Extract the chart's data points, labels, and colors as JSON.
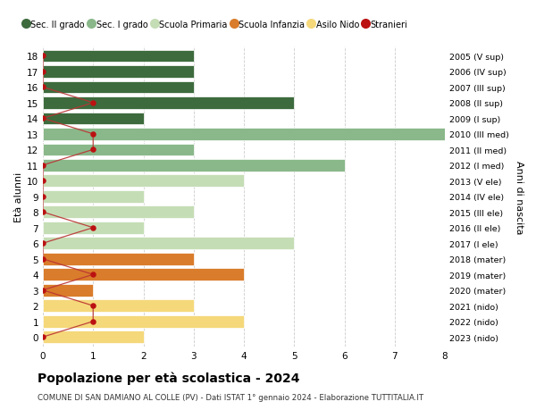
{
  "ages": [
    18,
    17,
    16,
    15,
    14,
    13,
    12,
    11,
    10,
    9,
    8,
    7,
    6,
    5,
    4,
    3,
    2,
    1,
    0
  ],
  "years": [
    "2005 (V sup)",
    "2006 (IV sup)",
    "2007 (III sup)",
    "2008 (II sup)",
    "2009 (I sup)",
    "2010 (III med)",
    "2011 (II med)",
    "2012 (I med)",
    "2013 (V ele)",
    "2014 (IV ele)",
    "2015 (III ele)",
    "2016 (II ele)",
    "2017 (I ele)",
    "2018 (mater)",
    "2019 (mater)",
    "2020 (mater)",
    "2021 (nido)",
    "2022 (nido)",
    "2023 (nido)"
  ],
  "bar_values": [
    3,
    3,
    3,
    5,
    2,
    8,
    3,
    6,
    4,
    2,
    3,
    2,
    5,
    3,
    4,
    1,
    3,
    4,
    2
  ],
  "bar_colors": [
    "#3d6b3d",
    "#3d6b3d",
    "#3d6b3d",
    "#3d6b3d",
    "#3d6b3d",
    "#8ab88a",
    "#8ab88a",
    "#8ab88a",
    "#c5ddb5",
    "#c5ddb5",
    "#c5ddb5",
    "#c5ddb5",
    "#c5ddb5",
    "#d97c2b",
    "#d97c2b",
    "#d97c2b",
    "#f5d87a",
    "#f5d87a",
    "#f5d87a"
  ],
  "stranieri_x": [
    0,
    0,
    0,
    1,
    0,
    1,
    1,
    0,
    0,
    0,
    0,
    1,
    0,
    0,
    1,
    0,
    1,
    1,
    0
  ],
  "legend_labels": [
    "Sec. II grado",
    "Sec. I grado",
    "Scuola Primaria",
    "Scuola Infanzia",
    "Asilo Nido",
    "Stranieri"
  ],
  "legend_colors": [
    "#3d6b3d",
    "#8ab88a",
    "#c5ddb5",
    "#d97c2b",
    "#f5d87a",
    "#bb1111"
  ],
  "title": "Popolazione per età scolastica - 2024",
  "subtitle": "COMUNE DI SAN DAMIANO AL COLLE (PV) - Dati ISTAT 1° gennaio 2024 - Elaborazione TUTTITALIA.IT",
  "ylabel_left": "Età alunni",
  "ylabel_right": "Anni di nascita",
  "xlim_max": 8,
  "bar_height": 0.78,
  "bg_color": "#ffffff",
  "grid_color": "#cccccc",
  "stranieri_color": "#bb1111",
  "stranieri_line_color": "#bb3333"
}
